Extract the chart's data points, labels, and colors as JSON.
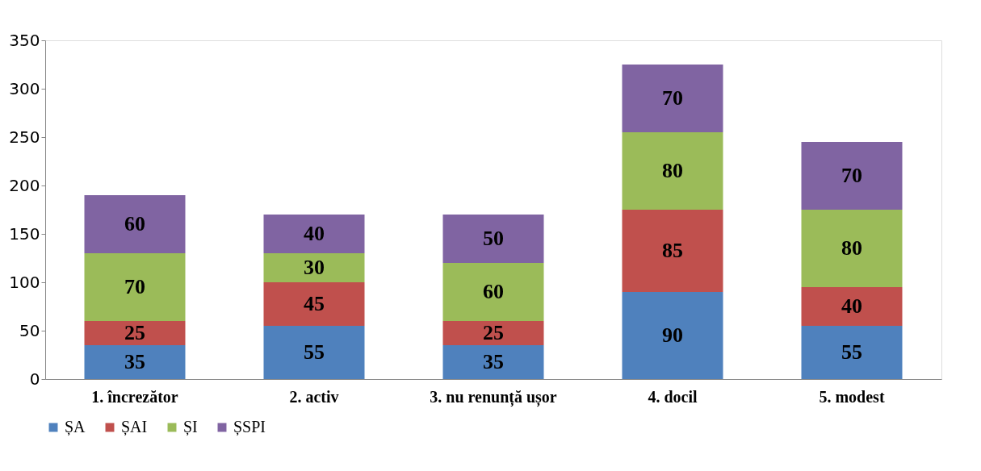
{
  "chart_data": {
    "type": "bar",
    "stacked": true,
    "categories": [
      "1. încrezător",
      "2. activ",
      "3. nu renunță ușor",
      "4. docil",
      "5. modest"
    ],
    "series": [
      {
        "name": "ȘA",
        "color": "#4f81bd",
        "values": [
          35,
          55,
          35,
          90,
          55
        ]
      },
      {
        "name": "ȘAI",
        "color": "#c0504d",
        "values": [
          25,
          45,
          25,
          85,
          40
        ]
      },
      {
        "name": "ȘI",
        "color": "#9bbb59",
        "values": [
          70,
          30,
          60,
          80,
          80
        ]
      },
      {
        "name": "ȘSPI",
        "color": "#8064a2",
        "values": [
          60,
          40,
          50,
          70,
          70
        ]
      }
    ],
    "ylim": [
      0,
      350
    ],
    "yticks": [
      0,
      50,
      100,
      150,
      200,
      250,
      300,
      350
    ],
    "grid": false,
    "legend": "bottom",
    "data_labels": true
  }
}
